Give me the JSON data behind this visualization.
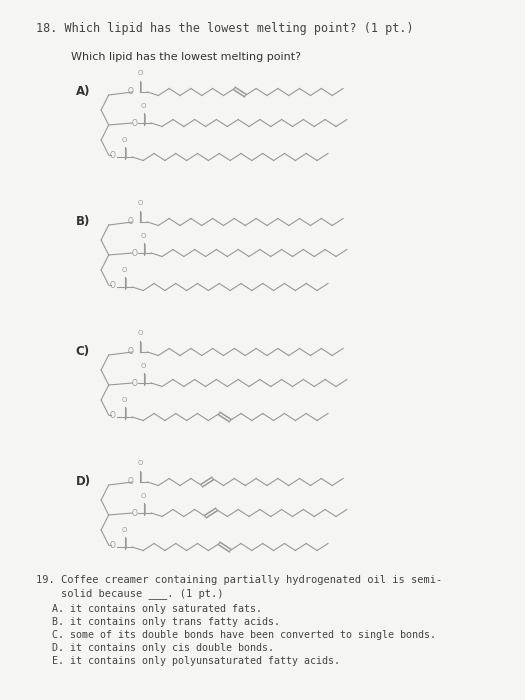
{
  "bg_color": "#f5f5f3",
  "line_color": "#999999",
  "double_bond_color": "#aaaaaa",
  "text_color": "#444444",
  "title": "18. Which lipid has the lowest melting point? (1 pt.)",
  "subtitle": "Which lipid has the lowest melting point?",
  "label_A": "A)",
  "label_B": "B)",
  "label_C": "C)",
  "label_D": "D)",
  "q19_line1": "19. Coffee creamer containing partially hydrogenated oil is semi-",
  "q19_line2": "    solid because ___. (1 pt.)",
  "q19_answers": [
    "A. it contains only saturated fats.",
    "B. it contains only trans fatty acids.",
    "C. some of its double bonds have been converted to single bonds.",
    "D. it contains only cis double bonds.",
    "E. it contains only polyunsaturated fatty acids."
  ],
  "structures": {
    "A": {
      "chain1_db": [
        8
      ],
      "chain2_db": [],
      "chain3_db": []
    },
    "B": {
      "chain1_db": [],
      "chain2_db": [],
      "chain3_db": []
    },
    "C": {
      "chain1_db": [],
      "chain2_db": [],
      "chain3_db": [
        8
      ]
    },
    "D": {
      "chain1_db": [
        5
      ],
      "chain2_db": [
        5
      ],
      "chain3_db": [
        8
      ]
    }
  }
}
